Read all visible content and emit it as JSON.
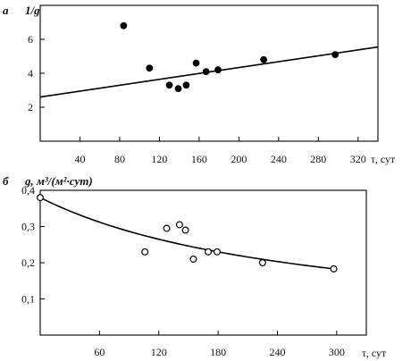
{
  "chart_data": [
    {
      "panel": "а",
      "type": "scatter",
      "ylabel": "1/g",
      "xlabel": "τ, сут",
      "xlim": [
        0,
        340
      ],
      "ylim": [
        0,
        8
      ],
      "x_ticks": [
        40,
        80,
        120,
        160,
        200,
        240,
        280,
        320
      ],
      "y_ticks": [
        2,
        4,
        6
      ],
      "grid": false,
      "points": [
        {
          "x": 84,
          "y": 6.8
        },
        {
          "x": 110,
          "y": 4.3
        },
        {
          "x": 130,
          "y": 3.3
        },
        {
          "x": 139,
          "y": 3.1
        },
        {
          "x": 147,
          "y": 3.3
        },
        {
          "x": 157,
          "y": 4.6
        },
        {
          "x": 167,
          "y": 4.1
        },
        {
          "x": 179,
          "y": 4.2
        },
        {
          "x": 225,
          "y": 4.8
        },
        {
          "x": 297,
          "y": 5.1
        }
      ],
      "marker": "filled",
      "fit": {
        "type": "linear",
        "x": [
          0,
          340
        ],
        "y": [
          2.6,
          5.55
        ]
      }
    },
    {
      "panel": "б",
      "type": "scatter",
      "ylabel": "g, м³/(м²·сут)",
      "xlabel": "τ, сут",
      "xlim": [
        0,
        330
      ],
      "ylim": [
        0,
        0.4
      ],
      "x_ticks": [
        60,
        120,
        180,
        240,
        300
      ],
      "y_ticks": [
        0.1,
        0.2,
        0.3,
        0.4
      ],
      "y_tick_labels": [
        "0,1",
        "0,2",
        "0,3",
        "0,4"
      ],
      "grid": false,
      "points": [
        {
          "x": 0,
          "y": 0.38
        },
        {
          "x": 106,
          "y": 0.23
        },
        {
          "x": 128,
          "y": 0.295
        },
        {
          "x": 141,
          "y": 0.305
        },
        {
          "x": 147,
          "y": 0.29
        },
        {
          "x": 155,
          "y": 0.21
        },
        {
          "x": 170,
          "y": 0.23
        },
        {
          "x": 179,
          "y": 0.23
        },
        {
          "x": 225,
          "y": 0.2
        },
        {
          "x": 297,
          "y": 0.183
        }
      ],
      "marker": "open",
      "fit": {
        "type": "hyperbolic",
        "x_range": [
          0,
          297
        ],
        "y_start": 0.38,
        "y_end": 0.183
      }
    }
  ]
}
